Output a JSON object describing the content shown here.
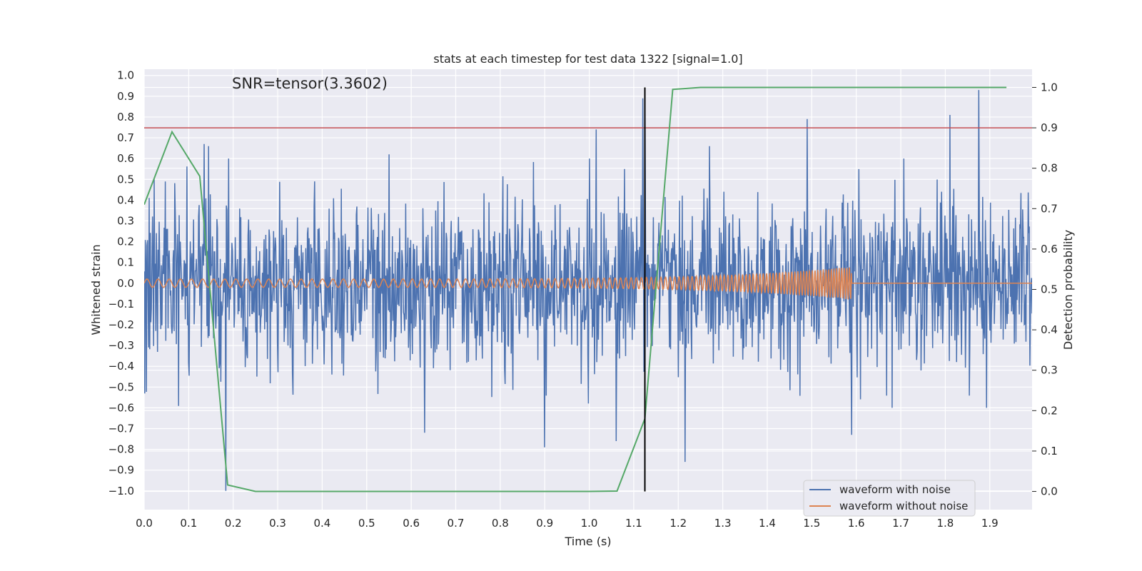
{
  "chart_data": {
    "type": "line",
    "title": "stats at each timestep for test data 1322 [signal=1.0]",
    "xlabel": "Time (s)",
    "ylabel": "Whitened strain",
    "y2label": "Detection probability",
    "annotation": "SNR=tensor(3.3602)",
    "xlim": [
      0.0,
      1.995
    ],
    "ylim": [
      -1.09,
      1.03
    ],
    "y2lim": [
      -0.045,
      1.045
    ],
    "x_ticks": [
      "0.0",
      "0.1",
      "0.2",
      "0.3",
      "0.4",
      "0.5",
      "0.6",
      "0.7",
      "0.8",
      "0.9",
      "1.0",
      "1.1",
      "1.2",
      "1.3",
      "1.4",
      "1.5",
      "1.6",
      "1.7",
      "1.8",
      "1.9"
    ],
    "y_ticks": [
      "1.0",
      "0.9",
      "0.8",
      "0.7",
      "0.6",
      "0.5",
      "0.4",
      "0.3",
      "0.2",
      "0.1",
      "0.0",
      "−0.1",
      "−0.2",
      "−0.3",
      "−0.4",
      "−0.5",
      "−0.6",
      "−0.7",
      "−0.8",
      "−0.9",
      "−1.0"
    ],
    "y2_ticks": [
      "1.0",
      "0.9",
      "0.8",
      "0.7",
      "0.6",
      "0.5",
      "0.4",
      "0.3",
      "0.2",
      "0.1",
      "0.0"
    ],
    "grid": true,
    "legend_position": "lower-right",
    "series": [
      {
        "name": "waveform with noise",
        "axis": "left",
        "color": "#4c72b0",
        "noise_std": 0.2,
        "spikes": [
          [
            0.135,
            0.67
          ],
          [
            0.145,
            0.66
          ],
          [
            0.183,
            -1.0
          ],
          [
            0.19,
            0.6
          ],
          [
            0.63,
            -0.72
          ],
          [
            0.9,
            -0.79
          ],
          [
            1.016,
            0.74
          ],
          [
            1.06,
            -0.76
          ],
          [
            1.12,
            0.89
          ],
          [
            1.125,
            0.87
          ],
          [
            1.215,
            -0.86
          ],
          [
            1.49,
            0.79
          ],
          [
            1.59,
            -0.73
          ],
          [
            1.81,
            0.81
          ],
          [
            1.875,
            0.93
          ],
          [
            1.0,
            0.6
          ],
          [
            0.55,
            0.62
          ],
          [
            1.27,
            0.66
          ]
        ]
      },
      {
        "name": "waveform without noise",
        "axis": "left",
        "color": "#dd8452",
        "chirp_end": 1.59,
        "amp_start": 0.02,
        "amp_end": 0.08
      },
      {
        "name": "detection probability",
        "axis": "right",
        "color": "#55a868",
        "x": [
          0.0,
          0.0625,
          0.125,
          0.1875,
          0.25,
          0.3125,
          0.375,
          0.4375,
          0.5,
          0.5625,
          0.625,
          0.6875,
          0.75,
          0.8125,
          0.875,
          0.9375,
          1.0,
          1.0625,
          1.125,
          1.1875,
          1.25,
          1.3125,
          1.375,
          1.4375,
          1.5,
          1.5625,
          1.625,
          1.6875,
          1.75,
          1.8125,
          1.875,
          1.9375
        ],
        "y": [
          0.71,
          0.89,
          0.78,
          0.016,
          0.0,
          0.0,
          0.0,
          0.0,
          0.0,
          0.0,
          0.0,
          0.0,
          0.0,
          0.0,
          0.0,
          0.0,
          0.0,
          0.001,
          0.18,
          0.995,
          1.0,
          1.0,
          1.0,
          1.0,
          1.0,
          1.0,
          1.0,
          1.0,
          1.0,
          1.0,
          1.0,
          1.0
        ]
      }
    ],
    "threshold": {
      "value": 0.9,
      "axis": "right",
      "color": "#c44e52"
    },
    "vline": {
      "x": 1.125,
      "ymin": 0.0,
      "ymax": 1.0,
      "axis": "right",
      "color": "#000000"
    },
    "legend": [
      {
        "label": "waveform with noise",
        "color": "#4c72b0"
      },
      {
        "label": "waveform without noise",
        "color": "#dd8452"
      }
    ]
  }
}
